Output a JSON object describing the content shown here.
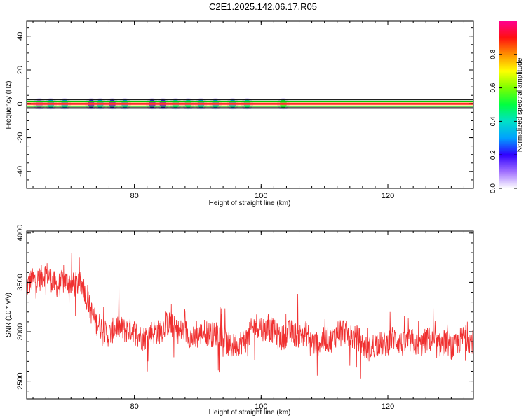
{
  "title": "C2E1.2025.142.06.17.R05",
  "colors": {
    "snr_line": "#f03030",
    "centerline": "#ff2a2a",
    "band": "#00c800",
    "axis": "#000000"
  },
  "chart_data": [
    {
      "type": "heatmap",
      "xlabel": "Height of straight line (km)",
      "ylabel": "Frequency (Hz)",
      "xlim": [
        63,
        133.5
      ],
      "ylim": [
        -50,
        49
      ],
      "xticks": [
        80,
        100,
        120
      ],
      "yticks": [
        40,
        20,
        0,
        -20,
        -40
      ],
      "band_hz": [
        -1.5,
        1.5
      ],
      "blobs": [
        {
          "x": 65.0,
          "amp": 0.15
        },
        {
          "x": 66.8,
          "amp": 0.35
        },
        {
          "x": 69.0,
          "amp": 0.3
        },
        {
          "x": 73.2,
          "amp": 0.2
        },
        {
          "x": 74.6,
          "amp": 0.35
        },
        {
          "x": 76.5,
          "amp": 0.2
        },
        {
          "x": 78.5,
          "amp": 0.35
        },
        {
          "x": 82.8,
          "amp": 0.2
        },
        {
          "x": 84.5,
          "amp": 0.2
        },
        {
          "x": 86.5,
          "amp": 0.4
        },
        {
          "x": 88.5,
          "amp": 0.4
        },
        {
          "x": 90.5,
          "amp": 0.3
        },
        {
          "x": 92.8,
          "amp": 0.3
        },
        {
          "x": 95.5,
          "amp": 0.3
        },
        {
          "x": 97.8,
          "amp": 0.45
        },
        {
          "x": 103.5,
          "amp": 0.5
        }
      ],
      "colorbar": {
        "label": "Normalized spectral amplitude",
        "range": [
          0,
          1
        ],
        "ticks": [
          0.0,
          0.2,
          0.4,
          0.6,
          0.8
        ],
        "tick_labels": [
          "0.0",
          "0.2",
          "0.4",
          "0.6",
          "0.8"
        ]
      }
    },
    {
      "type": "line",
      "xlabel": "Height of straight line (km)",
      "ylabel": "SNR (10 * v/v)",
      "xlim": [
        63,
        133.5
      ],
      "ylim": [
        2320,
        4020
      ],
      "xticks": [
        80,
        100,
        120
      ],
      "yticks": [
        4000,
        3500,
        3000,
        2500
      ],
      "trend_x": [
        63,
        66,
        70,
        72,
        73,
        74,
        76,
        80,
        84,
        88,
        92,
        96,
        100,
        104,
        108,
        112,
        116,
        120,
        124,
        128,
        132,
        133.5
      ],
      "trend_y": [
        3430,
        3560,
        3500,
        3390,
        3250,
        3100,
        3020,
        2980,
        3020,
        3010,
        2960,
        2890,
        3030,
        2990,
        2900,
        2980,
        2900,
        2860,
        2930,
        2840,
        2950,
        2900
      ],
      "noise_amplitude": 130,
      "n_points": 1400
    }
  ]
}
